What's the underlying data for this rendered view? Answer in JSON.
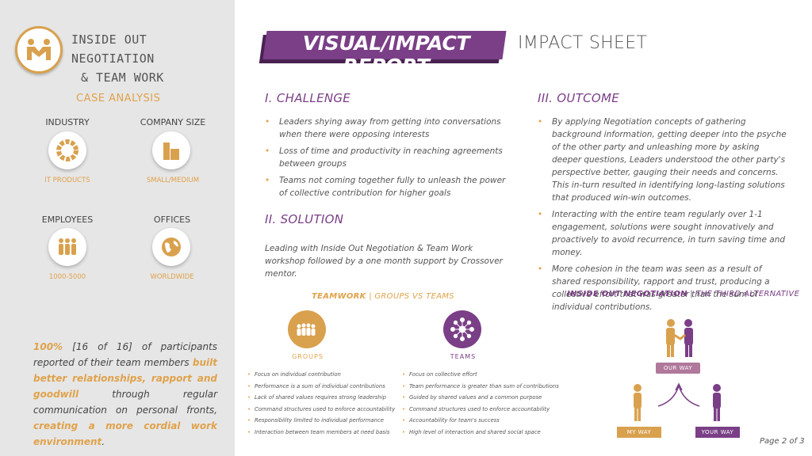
{
  "sidebar": {
    "logo_line1": "INSIDE OUT NEGOTIATION",
    "logo_line2": "& TEAM WORK",
    "case_analysis": "CASE ANALYSIS",
    "industry_label": "INDUSTRY",
    "industry_value": "IT PRODUCTS",
    "company_size_label": "COMPANY SIZE",
    "company_size_value": "SMALL/MEDIUM",
    "employees_label": "EMPLOYEES",
    "employees_value": "1000-5000",
    "offices_label": "OFFICES",
    "offices_value": "WORLDWIDE",
    "summary": {
      "pct": "100%",
      "t1": " [16 of 16] of participants reported of their team members ",
      "h1": "built better relationships, rapport and goodwill",
      "t2": " through regular communication on personal fronts, ",
      "h2": "creating a more cordial work environment",
      "t3": "."
    }
  },
  "header": {
    "banner": "VISUAL/IMPACT REPORT",
    "subtitle": "IMPACT SHEET"
  },
  "challenge": {
    "title": "I. CHALLENGE",
    "items": [
      "Leaders shying away from getting into conversations when there were opposing interests",
      "Loss of time and productivity in reaching agreements between groups",
      "Teams not coming together fully to unleash the power of collective contribution for higher goals"
    ]
  },
  "solution": {
    "title": "II. SOLUTION",
    "text": "Leading with Inside Out Negotiation & Team Work workshop followed by a one month support by Crossover mentor."
  },
  "outcome": {
    "title": "III. OUTCOME",
    "items": [
      "By applying Negotiation concepts of gathering background information, getting deeper into the psyche of the other party and unleashing more by asking deeper questions, Leaders understood the other party's perspective better, gauging their needs and concerns. This in-turn resulted in identifying long-lasting solutions that produced win-win outcomes.",
      "Interacting with the entire team regularly over 1-1 engagement, solutions were sought innovatively and proactively to avoid recurrence, in turn saving time and money.",
      "More cohesion in the team was seen as a result of shared responsibility, rapport and trust, producing a collective effort that was greater than the sum of individual contributions."
    ]
  },
  "teamwork": {
    "head_bold": "TEAMWORK",
    "head_sep": " | ",
    "head_rest": "GROUPS VS TEAMS",
    "groups_label": "GROUPS",
    "teams_label": "TEAMS",
    "groups": [
      "Focus on individual contribution",
      "Performance is a sum of individual contributions",
      "Lack of shared values requires strong leadership",
      "Command structures used to enforce accountability",
      "Responsibility limited to individual performance",
      "Interaction between team members at need basis"
    ],
    "teams": [
      "Focus on collective effort",
      "Team performance is greater than sum of contributions",
      "Guided by shared values and a common purpose",
      "Command structures used to enforce accountability",
      "Accountability for team's success",
      "High level of interaction and shared social space"
    ]
  },
  "negotiation": {
    "head_bold": "INSIDE OUT NEGOTIATION",
    "head_sep": " | ",
    "head_rest": "THE THIRD ALTERNATIVE",
    "our_way": "OUR WAY",
    "my_way": "MY WAY",
    "your_way": "YOUR WAY"
  },
  "footer": {
    "page": "Page 2 of 3"
  },
  "colors": {
    "accent_orange": "#e0a24a",
    "accent_purple": "#7a3f86",
    "sidebar_bg": "#e6e6e6"
  }
}
